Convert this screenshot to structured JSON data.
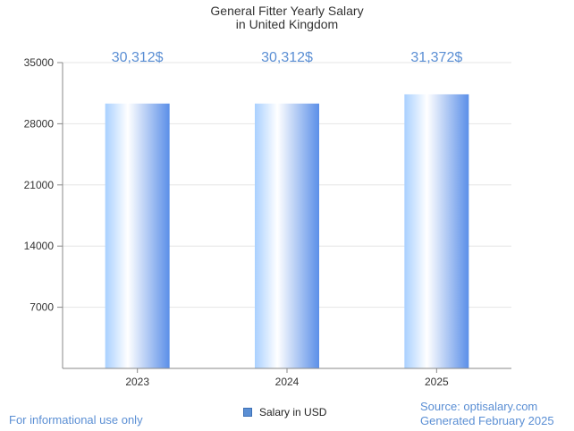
{
  "chart_data": {
    "type": "bar",
    "title": "General Fitter Yearly Salary",
    "subtitle": "in United Kingdom",
    "categories": [
      "2023",
      "2024",
      "2025"
    ],
    "series": [
      {
        "name": "Salary in USD",
        "values": [
          30312,
          30312,
          31372
        ]
      }
    ],
    "data_labels": [
      "30,312$",
      "30,312$",
      "31,372$"
    ],
    "yticks": [
      7000,
      14000,
      21000,
      28000,
      35000
    ],
    "ylim": [
      0,
      35000
    ],
    "xlabel": "",
    "ylabel": "",
    "grid": true,
    "legend_position": "bottom-center",
    "colors": {
      "bar_light": "#ffffff",
      "bar_mid": "#a9d0ff",
      "bar_dark": "#5b8fe8",
      "label": "#5b8fd4",
      "grid": "#e6e6e6",
      "axis": "#888888"
    }
  },
  "footer": {
    "disclaimer": "For informational use only",
    "source": "Source: optisalary.com",
    "generated": "Generated February 2025"
  }
}
